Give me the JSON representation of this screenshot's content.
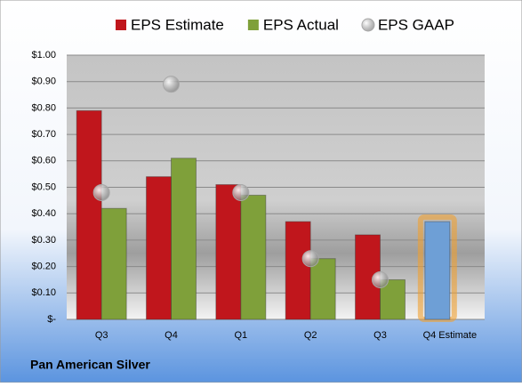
{
  "chart_data": {
    "type": "bar",
    "caption": "Pan American Silver",
    "categories": [
      "Q3",
      "Q4",
      "Q1",
      "Q2",
      "Q3",
      "Q4 Estimate"
    ],
    "series": [
      {
        "name": "EPS Estimate",
        "type": "bar",
        "slot": "left",
        "color": "#c0161c",
        "values": [
          0.79,
          0.54,
          0.51,
          0.37,
          0.32,
          null
        ]
      },
      {
        "name": "EPS Actual",
        "type": "bar",
        "slot": "right",
        "color": "#7fa03a",
        "values": [
          0.42,
          0.61,
          0.47,
          0.23,
          0.15,
          null
        ]
      },
      {
        "name": "EPS GAAP",
        "type": "scatter",
        "color": "#a8a8a8",
        "values": [
          0.48,
          0.89,
          0.48,
          0.23,
          0.15,
          null
        ]
      },
      {
        "type": "bar",
        "slot": "left",
        "color": "#6e9fd6",
        "glow": "#f0a030",
        "values": [
          null,
          null,
          null,
          null,
          null,
          0.37
        ]
      }
    ],
    "ylim": [
      0,
      1
    ],
    "yticks": [
      {
        "value": 0,
        "label": "$-"
      },
      {
        "value": 0.1,
        "label": "$0.10"
      },
      {
        "value": 0.2,
        "label": "$0.20"
      },
      {
        "value": 0.3,
        "label": "$0.30"
      },
      {
        "value": 0.4,
        "label": "$0.40"
      },
      {
        "value": 0.5,
        "label": "$0.50"
      },
      {
        "value": 0.6,
        "label": "$0.60"
      },
      {
        "value": 0.7,
        "label": "$0.70"
      },
      {
        "value": 0.8,
        "label": "$0.80"
      },
      {
        "value": 0.9,
        "label": "$0.90"
      },
      {
        "value": 1,
        "label": "$1.00"
      }
    ],
    "grid": true
  }
}
